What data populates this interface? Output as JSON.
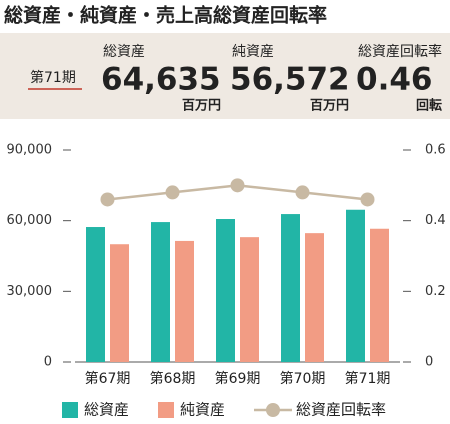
{
  "summary": {
    "title": "総資産・純資産・売上高総資産回転率",
    "period": "第71期",
    "items": [
      {
        "label": "総資産",
        "value": "64,635",
        "unit": "百万円"
      },
      {
        "label": "純資産",
        "value": "56,572",
        "unit": "百万円"
      },
      {
        "label": "総資産回転率",
        "value": "0.46",
        "unit": "回転"
      }
    ]
  },
  "chart_data": {
    "type": "bar",
    "categories": [
      "第67期",
      "第68期",
      "第69期",
      "第70期",
      "第71期"
    ],
    "series": [
      {
        "name": "総資産",
        "color": "#22b5a6",
        "values": [
          57300,
          59400,
          60700,
          62800,
          64635
        ]
      },
      {
        "name": "純資産",
        "color": "#f29c84",
        "values": [
          50000,
          51400,
          53000,
          54700,
          56572
        ]
      },
      {
        "name": "総資産回転率",
        "color": "#c8b9a3",
        "type": "line",
        "axis": "y2",
        "values": [
          0.46,
          0.48,
          0.5,
          0.48,
          0.46
        ]
      }
    ],
    "ylim": [
      0,
      90000
    ],
    "yticks": [
      0,
      {
        "value": 30000,
        "label": "30,000"
      },
      {
        "value": 60000,
        "label": "60,000"
      },
      {
        "value": 90000,
        "label": "90,000"
      }
    ],
    "y2lim": [
      0,
      0.6
    ],
    "y2ticks": [
      0,
      0.2,
      0.4,
      0.6
    ],
    "grid": false
  }
}
